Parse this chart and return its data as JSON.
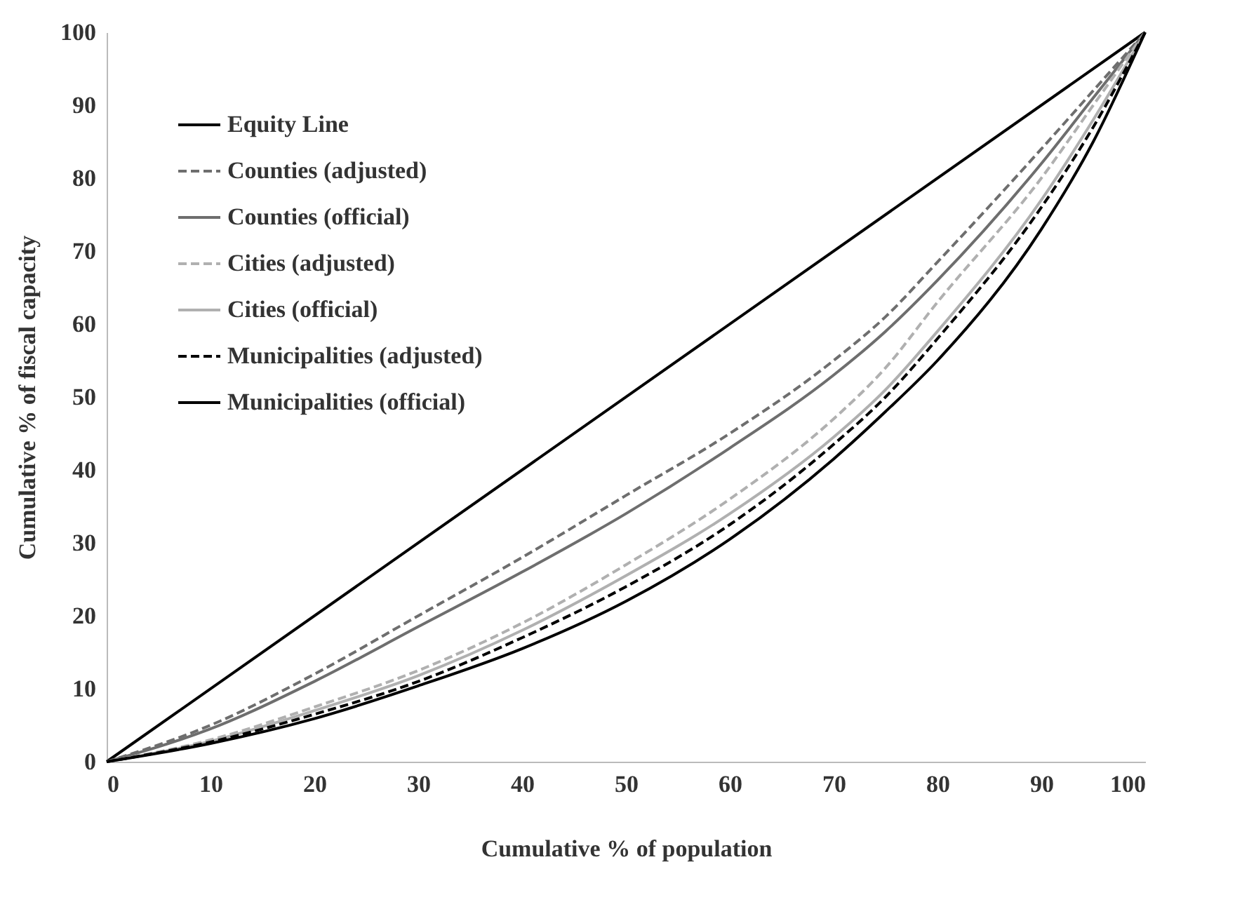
{
  "chart_data": {
    "type": "line",
    "xlabel": "Cumulative % of population",
    "ylabel": "Cumulative % of fiscal capacity",
    "x": [
      0,
      10,
      20,
      30,
      40,
      50,
      60,
      70,
      75,
      80,
      90,
      95,
      100
    ],
    "series": [
      {
        "name": "Equity Line",
        "color": "#000000",
        "line_style": "solid",
        "x": [
          0,
          100
        ],
        "values": [
          0,
          100
        ]
      },
      {
        "name": "Counties (adjusted)",
        "color": "#6e6e6e",
        "line_style": "dashed",
        "values": [
          0,
          5,
          12,
          20,
          28,
          36.5,
          45,
          55,
          61,
          68.5,
          84,
          92,
          100
        ]
      },
      {
        "name": "Counties (official)",
        "color": "#6e6e6e",
        "line_style": "solid",
        "values": [
          0,
          4.5,
          11,
          18.5,
          26,
          34,
          43,
          53,
          59,
          66,
          82,
          91,
          100
        ]
      },
      {
        "name": "Cities (adjusted)",
        "color": "#b0b0b0",
        "line_style": "dashed",
        "values": [
          0,
          3,
          7.5,
          12.5,
          19,
          27,
          36,
          47,
          54,
          63,
          80,
          90,
          100
        ]
      },
      {
        "name": "Cities (official)",
        "color": "#b0b0b0",
        "line_style": "solid",
        "values": [
          0,
          2.8,
          7,
          11.8,
          18,
          25.5,
          34,
          44.5,
          51,
          59,
          77,
          88,
          100
        ]
      },
      {
        "name": "Municipalities (adjusted)",
        "color": "#000000",
        "line_style": "dashed",
        "values": [
          0,
          2.7,
          6.5,
          11,
          17,
          24,
          32.5,
          43.5,
          50,
          58,
          76,
          87,
          100
        ]
      },
      {
        "name": "Municipalities (official)",
        "color": "#000000",
        "line_style": "solid",
        "values": [
          0,
          2.5,
          5.9,
          10.4,
          15.5,
          22,
          30.5,
          41.5,
          48,
          55,
          73,
          85,
          100
        ]
      }
    ],
    "xlim": [
      0,
      100
    ],
    "xticks": [
      0,
      10,
      20,
      30,
      40,
      50,
      60,
      70,
      80,
      90,
      100
    ],
    "ylim": [
      0,
      100
    ],
    "yticks": [
      0,
      10,
      20,
      30,
      40,
      50,
      60,
      70,
      80,
      90,
      100
    ],
    "grid": false,
    "legend": "top left",
    "marker": "none"
  }
}
